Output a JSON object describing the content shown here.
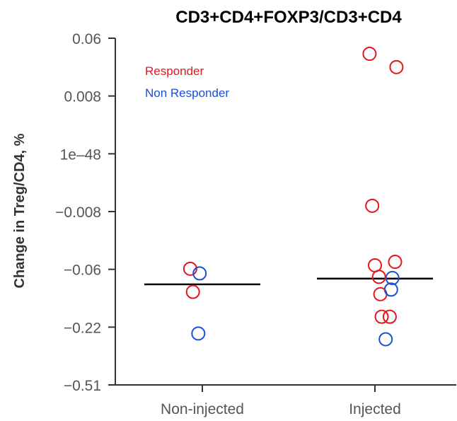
{
  "colors": {
    "responder": "#e8141a",
    "non_responder": "#1a4fd6",
    "axis": "#333333",
    "median": "#000000"
  },
  "chart_data": {
    "type": "scatter",
    "title": "CD3+CD4+FOXP3/CD3+CD4",
    "xlabel": "",
    "ylabel": "Change in Treg/CD4, %",
    "y_scale": "categorical-ticks",
    "y_ticks": [
      "0.06",
      "0.008",
      "1e–48",
      "−0.008",
      "−0.06",
      "−0.22",
      "−0.51"
    ],
    "categories": [
      "Non-injected",
      "Injected"
    ],
    "legend": {
      "position": "top-left",
      "entries": [
        {
          "label": "Responder",
          "color": "#e8141a"
        },
        {
          "label": "Non Responder",
          "color": "#1a4fd6"
        }
      ]
    },
    "series": [
      {
        "name": "Responder",
        "color": "#e8141a",
        "points": [
          {
            "group": "Non-injected",
            "tick_index": 3.99,
            "jitter": -0.09
          },
          {
            "group": "Non-injected",
            "tick_index": 4.39,
            "jitter": -0.07
          },
          {
            "group": "Injected",
            "tick_index": 0.27,
            "jitter": -0.04
          },
          {
            "group": "Injected",
            "tick_index": 0.5,
            "jitter": 0.16
          },
          {
            "group": "Injected",
            "tick_index": 2.9,
            "jitter": -0.02
          },
          {
            "group": "Injected",
            "tick_index": 3.93,
            "jitter": 0.0
          },
          {
            "group": "Injected",
            "tick_index": 3.87,
            "jitter": 0.15
          },
          {
            "group": "Injected",
            "tick_index": 4.13,
            "jitter": 0.03
          },
          {
            "group": "Injected",
            "tick_index": 4.43,
            "jitter": 0.04
          },
          {
            "group": "Injected",
            "tick_index": 4.82,
            "jitter": 0.05
          },
          {
            "group": "Injected",
            "tick_index": 4.82,
            "jitter": 0.11
          }
        ]
      },
      {
        "name": "Non Responder",
        "color": "#1a4fd6",
        "points": [
          {
            "group": "Non-injected",
            "tick_index": 4.07,
            "jitter": -0.02
          },
          {
            "group": "Non-injected",
            "tick_index": 5.11,
            "jitter": -0.03
          },
          {
            "group": "Injected",
            "tick_index": 4.15,
            "jitter": 0.13
          },
          {
            "group": "Injected",
            "tick_index": 4.35,
            "jitter": 0.12
          },
          {
            "group": "Injected",
            "tick_index": 5.21,
            "jitter": 0.08
          }
        ]
      }
    ],
    "medians": [
      {
        "group": "Non-injected",
        "tick_index": 4.26
      },
      {
        "group": "Injected",
        "tick_index": 4.16
      }
    ]
  }
}
